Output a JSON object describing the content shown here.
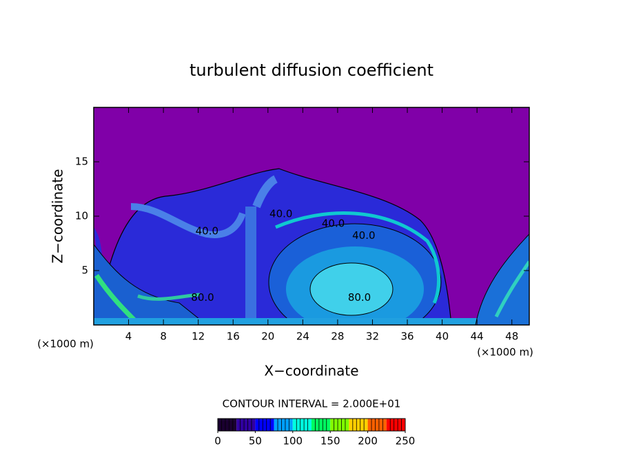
{
  "chart_data": {
    "type": "contour",
    "title": "turbulent diffusion coefficient",
    "x_label": "X−coordinate",
    "y_label": "Z−coordinate",
    "x_unit_left": "(×1000 m)",
    "x_unit_right": "(×1000 m)",
    "xlim": [
      0,
      50
    ],
    "ylim": [
      0,
      20
    ],
    "xticks": [
      4,
      8,
      12,
      16,
      20,
      24,
      28,
      32,
      36,
      40,
      44,
      48
    ],
    "yticks": [
      5,
      10,
      15
    ],
    "background_color": "#8000a8",
    "contour_labels": [
      {
        "value": 40,
        "label": "40.0",
        "x": 13,
        "y": 8.6
      },
      {
        "value": 40,
        "label": "40.0",
        "x": 21.5,
        "y": 10.2
      },
      {
        "value": 40,
        "label": "40.0",
        "x": 27.5,
        "y": 9.3
      },
      {
        "value": 40,
        "label": "40.0",
        "x": 31,
        "y": 8.2
      },
      {
        "value": 80,
        "label": "80.0",
        "x": 30.5,
        "y": 2.5
      },
      {
        "value": 80,
        "label": "80.0",
        "x": 12.5,
        "y": 2.5
      }
    ],
    "contour_interval": "CONTOUR INTERVAL = 2.000E+01",
    "colorbar": {
      "range": [
        0,
        250
      ],
      "ticks": [
        0,
        50,
        100,
        150,
        200,
        250
      ],
      "colors": [
        "#1a0030",
        "#3000a0",
        "#0000ff",
        "#00a0ff",
        "#00ffe0",
        "#00ff60",
        "#80ff00",
        "#ffd000",
        "#ff6000",
        "#ff0000"
      ]
    }
  }
}
